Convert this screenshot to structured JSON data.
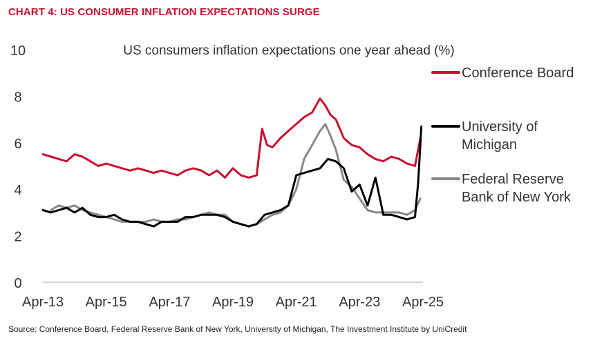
{
  "header": {
    "title": "CHART 4: US CONSUMER INFLATION EXPECTATIONS SURGE"
  },
  "footer": {
    "source": "Source: Conference Board, Federal Reserve Bank of New York, University of Michigan, The Investment Institute by UniCredit"
  },
  "colors": {
    "title": "#c8102e",
    "conference_board": "#c8102e",
    "michigan": "#000000",
    "ny_fed": "#888888",
    "axis": "#bbbbbb",
    "text": "#333333"
  },
  "chart_data": {
    "type": "line",
    "title": "US consumers inflation expectations one year ahead (%)",
    "xlabel": "",
    "ylabel": "",
    "xlim": [
      2013.25,
      2025.25
    ],
    "ylim": [
      0,
      10
    ],
    "yticks": [
      0,
      2,
      4,
      6,
      8,
      10
    ],
    "x_tick_values": [
      2013.25,
      2015.25,
      2017.25,
      2019.25,
      2021.25,
      2023.25,
      2025.25
    ],
    "x_tick_labels": [
      "Apr-13",
      "Apr-15",
      "Apr-17",
      "Apr-19",
      "Apr-21",
      "Apr-23",
      "Apr-25"
    ],
    "grid": false,
    "legend": "right",
    "series": [
      {
        "name": "Conference Board",
        "legend_lines": [
          "Conference Board"
        ],
        "color": "#c8102e",
        "x": [
          2013.25,
          2013.5,
          2013.75,
          2014.0,
          2014.25,
          2014.5,
          2014.75,
          2015.0,
          2015.25,
          2015.5,
          2015.75,
          2016.0,
          2016.25,
          2016.5,
          2016.75,
          2017.0,
          2017.25,
          2017.5,
          2017.75,
          2018.0,
          2018.25,
          2018.5,
          2018.75,
          2019.0,
          2019.25,
          2019.5,
          2019.75,
          2020.0,
          2020.17,
          2020.33,
          2020.5,
          2020.75,
          2021.0,
          2021.25,
          2021.5,
          2021.75,
          2022.0,
          2022.17,
          2022.33,
          2022.5,
          2022.75,
          2023.0,
          2023.25,
          2023.5,
          2023.75,
          2024.0,
          2024.25,
          2024.5,
          2024.75,
          2025.0,
          2025.17
        ],
        "values": [
          5.5,
          5.4,
          5.3,
          5.2,
          5.5,
          5.4,
          5.2,
          5.0,
          5.1,
          5.0,
          4.9,
          4.8,
          4.9,
          4.8,
          4.7,
          4.8,
          4.7,
          4.6,
          4.8,
          4.9,
          4.8,
          4.6,
          4.8,
          4.5,
          4.9,
          4.6,
          4.5,
          4.6,
          6.6,
          5.9,
          5.8,
          6.2,
          6.5,
          6.8,
          7.1,
          7.3,
          7.9,
          7.6,
          7.2,
          7.0,
          6.2,
          5.9,
          5.8,
          5.5,
          5.3,
          5.2,
          5.4,
          5.3,
          5.1,
          5.0,
          6.2
        ]
      },
      {
        "name": "University of Michigan",
        "legend_lines": [
          "University of",
          "Michigan"
        ],
        "color": "#000000",
        "x": [
          2013.25,
          2013.5,
          2013.75,
          2014.0,
          2014.25,
          2014.5,
          2014.75,
          2015.0,
          2015.25,
          2015.5,
          2015.75,
          2016.0,
          2016.25,
          2016.5,
          2016.75,
          2017.0,
          2017.25,
          2017.5,
          2017.75,
          2018.0,
          2018.25,
          2018.5,
          2018.75,
          2019.0,
          2019.25,
          2019.5,
          2019.75,
          2020.0,
          2020.25,
          2020.5,
          2020.75,
          2021.0,
          2021.25,
          2021.5,
          2021.75,
          2022.0,
          2022.25,
          2022.5,
          2022.75,
          2023.0,
          2023.25,
          2023.5,
          2023.75,
          2024.0,
          2024.25,
          2024.5,
          2024.75,
          2025.0,
          2025.1,
          2025.2
        ],
        "values": [
          3.1,
          3.0,
          3.1,
          3.2,
          3.0,
          3.2,
          2.9,
          2.8,
          2.8,
          2.9,
          2.7,
          2.6,
          2.6,
          2.5,
          2.4,
          2.6,
          2.6,
          2.6,
          2.8,
          2.8,
          2.9,
          2.9,
          2.9,
          2.8,
          2.6,
          2.5,
          2.4,
          2.5,
          2.9,
          3.0,
          3.1,
          3.3,
          4.6,
          4.7,
          4.8,
          4.9,
          5.3,
          5.2,
          4.9,
          3.9,
          4.2,
          3.3,
          4.5,
          2.9,
          2.9,
          2.8,
          2.7,
          2.8,
          4.3,
          6.7
        ]
      },
      {
        "name": "Federal Reserve Bank of New York",
        "legend_lines": [
          "Federal Reserve",
          "Bank of New York"
        ],
        "color": "#888888",
        "x": [
          2013.5,
          2013.75,
          2014.0,
          2014.25,
          2014.5,
          2014.75,
          2015.0,
          2015.25,
          2015.5,
          2015.75,
          2016.0,
          2016.25,
          2016.5,
          2016.75,
          2017.0,
          2017.25,
          2017.5,
          2017.75,
          2018.0,
          2018.25,
          2018.5,
          2018.75,
          2019.0,
          2019.25,
          2019.5,
          2019.75,
          2020.0,
          2020.25,
          2020.5,
          2020.75,
          2021.0,
          2021.25,
          2021.5,
          2021.75,
          2022.0,
          2022.17,
          2022.33,
          2022.5,
          2022.75,
          2023.0,
          2023.25,
          2023.5,
          2023.75,
          2024.0,
          2024.25,
          2024.5,
          2024.75,
          2025.0,
          2025.17
        ],
        "values": [
          3.1,
          3.3,
          3.2,
          3.3,
          3.1,
          3.0,
          2.9,
          2.8,
          2.7,
          2.6,
          2.6,
          2.6,
          2.6,
          2.7,
          2.6,
          2.6,
          2.7,
          2.7,
          2.8,
          2.9,
          3.0,
          2.9,
          2.9,
          2.6,
          2.5,
          2.4,
          2.5,
          2.7,
          2.9,
          3.0,
          3.3,
          4.0,
          5.3,
          5.9,
          6.5,
          6.8,
          6.3,
          5.7,
          4.4,
          4.1,
          3.6,
          3.1,
          3.0,
          3.0,
          3.0,
          3.0,
          2.9,
          3.1,
          3.6
        ]
      }
    ]
  }
}
